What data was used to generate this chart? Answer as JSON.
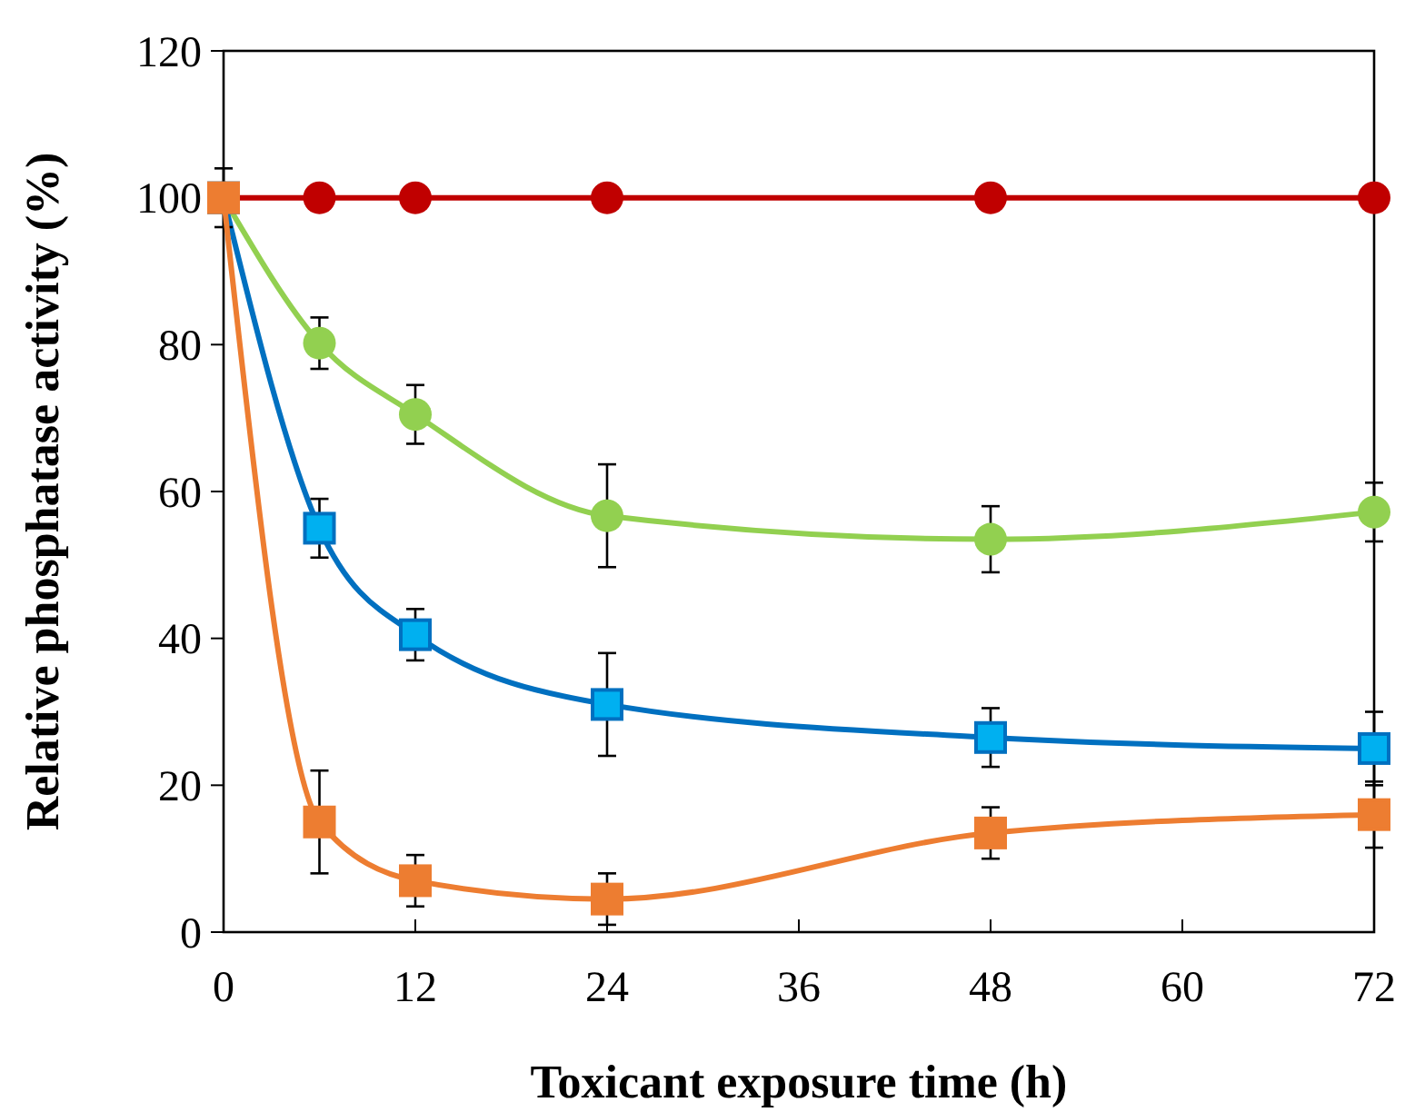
{
  "chart_data": {
    "type": "line",
    "xlabel": "Toxicant exposure time (h)",
    "ylabel": "Relative phosphatase activity (%)",
    "x": [
      0,
      6,
      12,
      24,
      48,
      72
    ],
    "series": [
      {
        "color": "#c00000",
        "marker": "circle",
        "values": [
          100,
          100,
          100,
          100,
          100,
          100
        ]
      },
      {
        "color": "#92d050",
        "marker": "circle",
        "values": [
          100,
          80.2,
          70.5,
          56.7,
          53.5,
          57.2
        ],
        "errors": [
          null,
          3.5,
          4,
          7,
          4.5,
          4
        ]
      },
      {
        "color": "#0070c0",
        "marker": "square",
        "values": [
          100,
          55,
          40.5,
          31,
          26.5,
          25
        ],
        "errors": [
          4,
          4,
          3.5,
          7,
          4,
          5
        ]
      },
      {
        "color": "#ed7d31",
        "marker": "square",
        "values": [
          100,
          15,
          7,
          4.5,
          13.5,
          16
        ],
        "errors": [
          null,
          7,
          3.5,
          3.5,
          3.5,
          4.5
        ]
      }
    ],
    "xlim": [
      0,
      72
    ],
    "xticks": [
      0,
      12,
      24,
      36,
      48,
      60,
      72
    ],
    "ylim": [
      0,
      120
    ],
    "yticks": [
      0,
      20,
      40,
      60,
      80,
      100,
      120
    ],
    "grid": false
  }
}
